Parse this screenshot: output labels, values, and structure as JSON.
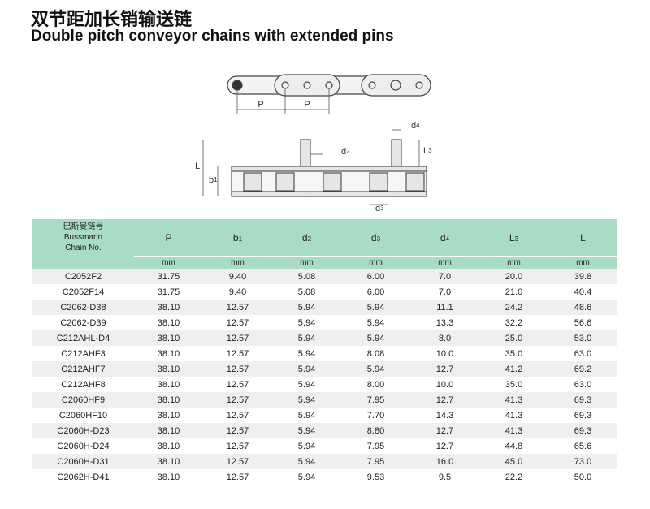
{
  "header": {
    "title_cn": "双节距加长销输送链",
    "title_en": "Double pitch conveyor chains with extended pins"
  },
  "diagram": {
    "labels": [
      {
        "main": "P"
      },
      {
        "main": "P"
      },
      {
        "main": "d",
        "sub": "4"
      },
      {
        "main": "d",
        "sub": "2"
      },
      {
        "main": "L",
        "sub": "3"
      },
      {
        "main": "L"
      },
      {
        "main": "b",
        "sub": "1"
      },
      {
        "main": "d",
        "sub": "3"
      }
    ]
  },
  "table": {
    "columns": [
      {
        "lines": [
          "巴斯曼链号",
          "Bussmann",
          "Chain No."
        ]
      },
      {
        "main": "P"
      },
      {
        "main": "b",
        "sub": "1"
      },
      {
        "main": "d",
        "sub": "2"
      },
      {
        "main": "d",
        "sub": "3"
      },
      {
        "main": "d",
        "sub": "4"
      },
      {
        "main": "L",
        "sub": "3"
      },
      {
        "main": "L"
      }
    ],
    "units": [
      "mm",
      "mm",
      "mm",
      "mm",
      "mm",
      "mm",
      "mm"
    ],
    "rows": [
      [
        "C2052F2",
        "31.75",
        "9.40",
        "5.08",
        "6.00",
        "7.0",
        "20.0",
        "39.8"
      ],
      [
        "C2052F14",
        "31.75",
        "9.40",
        "5.08",
        "6.00",
        "7.0",
        "21.0",
        "40.4"
      ],
      [
        "C2062-D38",
        "38.10",
        "12.57",
        "5.94",
        "5.94",
        "11.1",
        "24.2",
        "48.6"
      ],
      [
        "C2062-D39",
        "38.10",
        "12.57",
        "5.94",
        "5.94",
        "13.3",
        "32.2",
        "56.6"
      ],
      [
        "C212AHL-D4",
        "38.10",
        "12.57",
        "5.94",
        "5.94",
        "8.0",
        "25.0",
        "53.0"
      ],
      [
        "C212AHF3",
        "38.10",
        "12.57",
        "5.94",
        "8.08",
        "10.0",
        "35.0",
        "63.0"
      ],
      [
        "C212AHF7",
        "38.10",
        "12.57",
        "5.94",
        "5.94",
        "12.7",
        "41.2",
        "69.2"
      ],
      [
        "C212AHF8",
        "38.10",
        "12.57",
        "5.94",
        "8.00",
        "10.0",
        "35.0",
        "63.0"
      ],
      [
        "C2060HF9",
        "38.10",
        "12.57",
        "5.94",
        "7.95",
        "12.7",
        "41.3",
        "69.3"
      ],
      [
        "C2060HF10",
        "38.10",
        "12.57",
        "5.94",
        "7.70",
        "14.3",
        "41.3",
        "69.3"
      ],
      [
        "C2060H-D23",
        "38.10",
        "12.57",
        "5.94",
        "8.80",
        "12.7",
        "41.3",
        "69.3"
      ],
      [
        "C2060H-D24",
        "38.10",
        "12.57",
        "5.94",
        "7.95",
        "12.7",
        "44.8",
        "65.6"
      ],
      [
        "C2060H-D31",
        "38.10",
        "12.57",
        "5.94",
        "7.95",
        "16.0",
        "45.0",
        "73.0"
      ],
      [
        "C2062H-D41",
        "38.10",
        "12.57",
        "5.94",
        "9.53",
        "9.5",
        "22.2",
        "50.0"
      ]
    ]
  }
}
